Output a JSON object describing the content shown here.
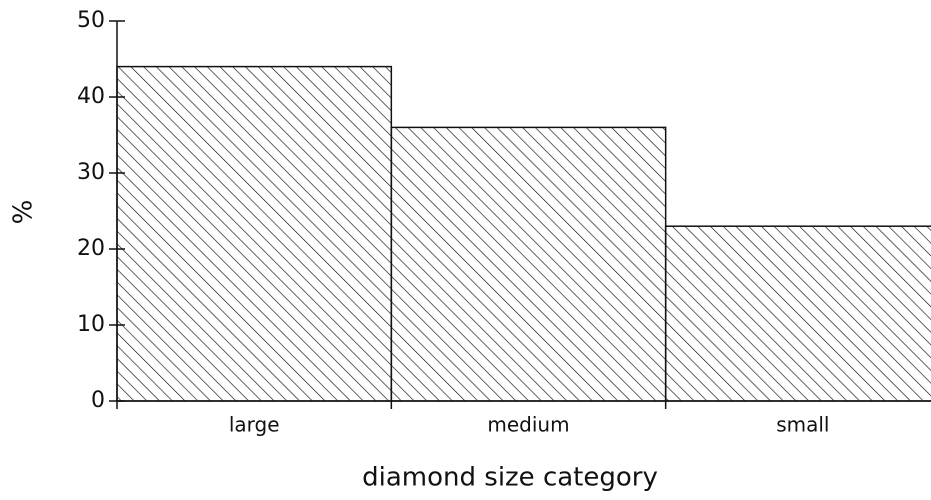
{
  "chart_data": {
    "type": "bar",
    "categories": [
      "large",
      "medium",
      "small"
    ],
    "values": [
      44,
      36,
      23
    ],
    "color": "#111111",
    "xlabel": "diamond size category",
    "ylabel": "%",
    "ylim": [
      0,
      50
    ],
    "yticks": [
      0,
      10,
      20,
      30,
      40,
      50
    ],
    "grid": false
  }
}
